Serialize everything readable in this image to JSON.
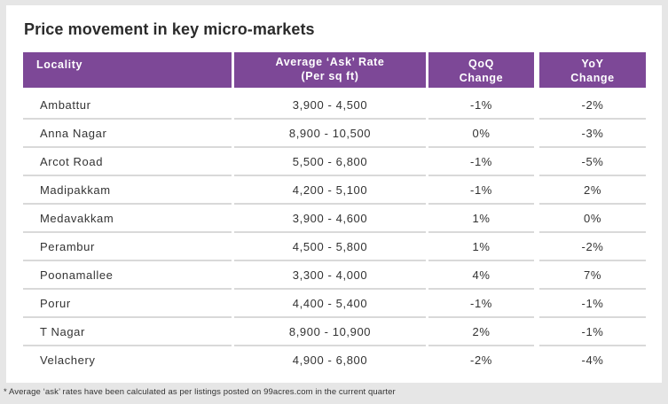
{
  "title": "Price movement in key micro-markets",
  "headers": {
    "locality": "Locality",
    "ask_rate_line1": "Average ‘Ask’ Rate",
    "ask_rate_line2": "(Per sq ft)",
    "qoq_line1": "QoQ",
    "qoq_line2": "Change",
    "yoy_line1": "YoY",
    "yoy_line2": "Change"
  },
  "rows": [
    {
      "locality": "Ambattur",
      "rate": "3,900 - 4,500",
      "qoq": "-1%",
      "yoy": "-2%"
    },
    {
      "locality": "Anna Nagar",
      "rate": "8,900 - 10,500",
      "qoq": "0%",
      "yoy": "-3%"
    },
    {
      "locality": "Arcot Road",
      "rate": "5,500 - 6,800",
      "qoq": "-1%",
      "yoy": "-5%"
    },
    {
      "locality": "Madipakkam",
      "rate": "4,200 - 5,100",
      "qoq": "-1%",
      "yoy": "2%"
    },
    {
      "locality": "Medavakkam",
      "rate": "3,900 - 4,600",
      "qoq": "1%",
      "yoy": "0%"
    },
    {
      "locality": "Perambur",
      "rate": "4,500 - 5,800",
      "qoq": "1%",
      "yoy": "-2%"
    },
    {
      "locality": "Poonamallee",
      "rate": "3,300 - 4,000",
      "qoq": "4%",
      "yoy": "7%"
    },
    {
      "locality": "Porur",
      "rate": "4,400 - 5,400",
      "qoq": "-1%",
      "yoy": "-1%"
    },
    {
      "locality": "T Nagar",
      "rate": "8,900 - 10,900",
      "qoq": "2%",
      "yoy": "-1%"
    },
    {
      "locality": "Velachery",
      "rate": "4,900 - 6,800",
      "qoq": "-2%",
      "yoy": "-4%"
    }
  ],
  "footnote": "* Average ‘ask’ rates have been calculated as per listings posted on 99acres.com in the current quarter",
  "colors": {
    "header_bg": "#7d4897",
    "header_text": "#ffffff",
    "divider": "#d9d9d9",
    "page_bg": "#e6e6e6"
  }
}
